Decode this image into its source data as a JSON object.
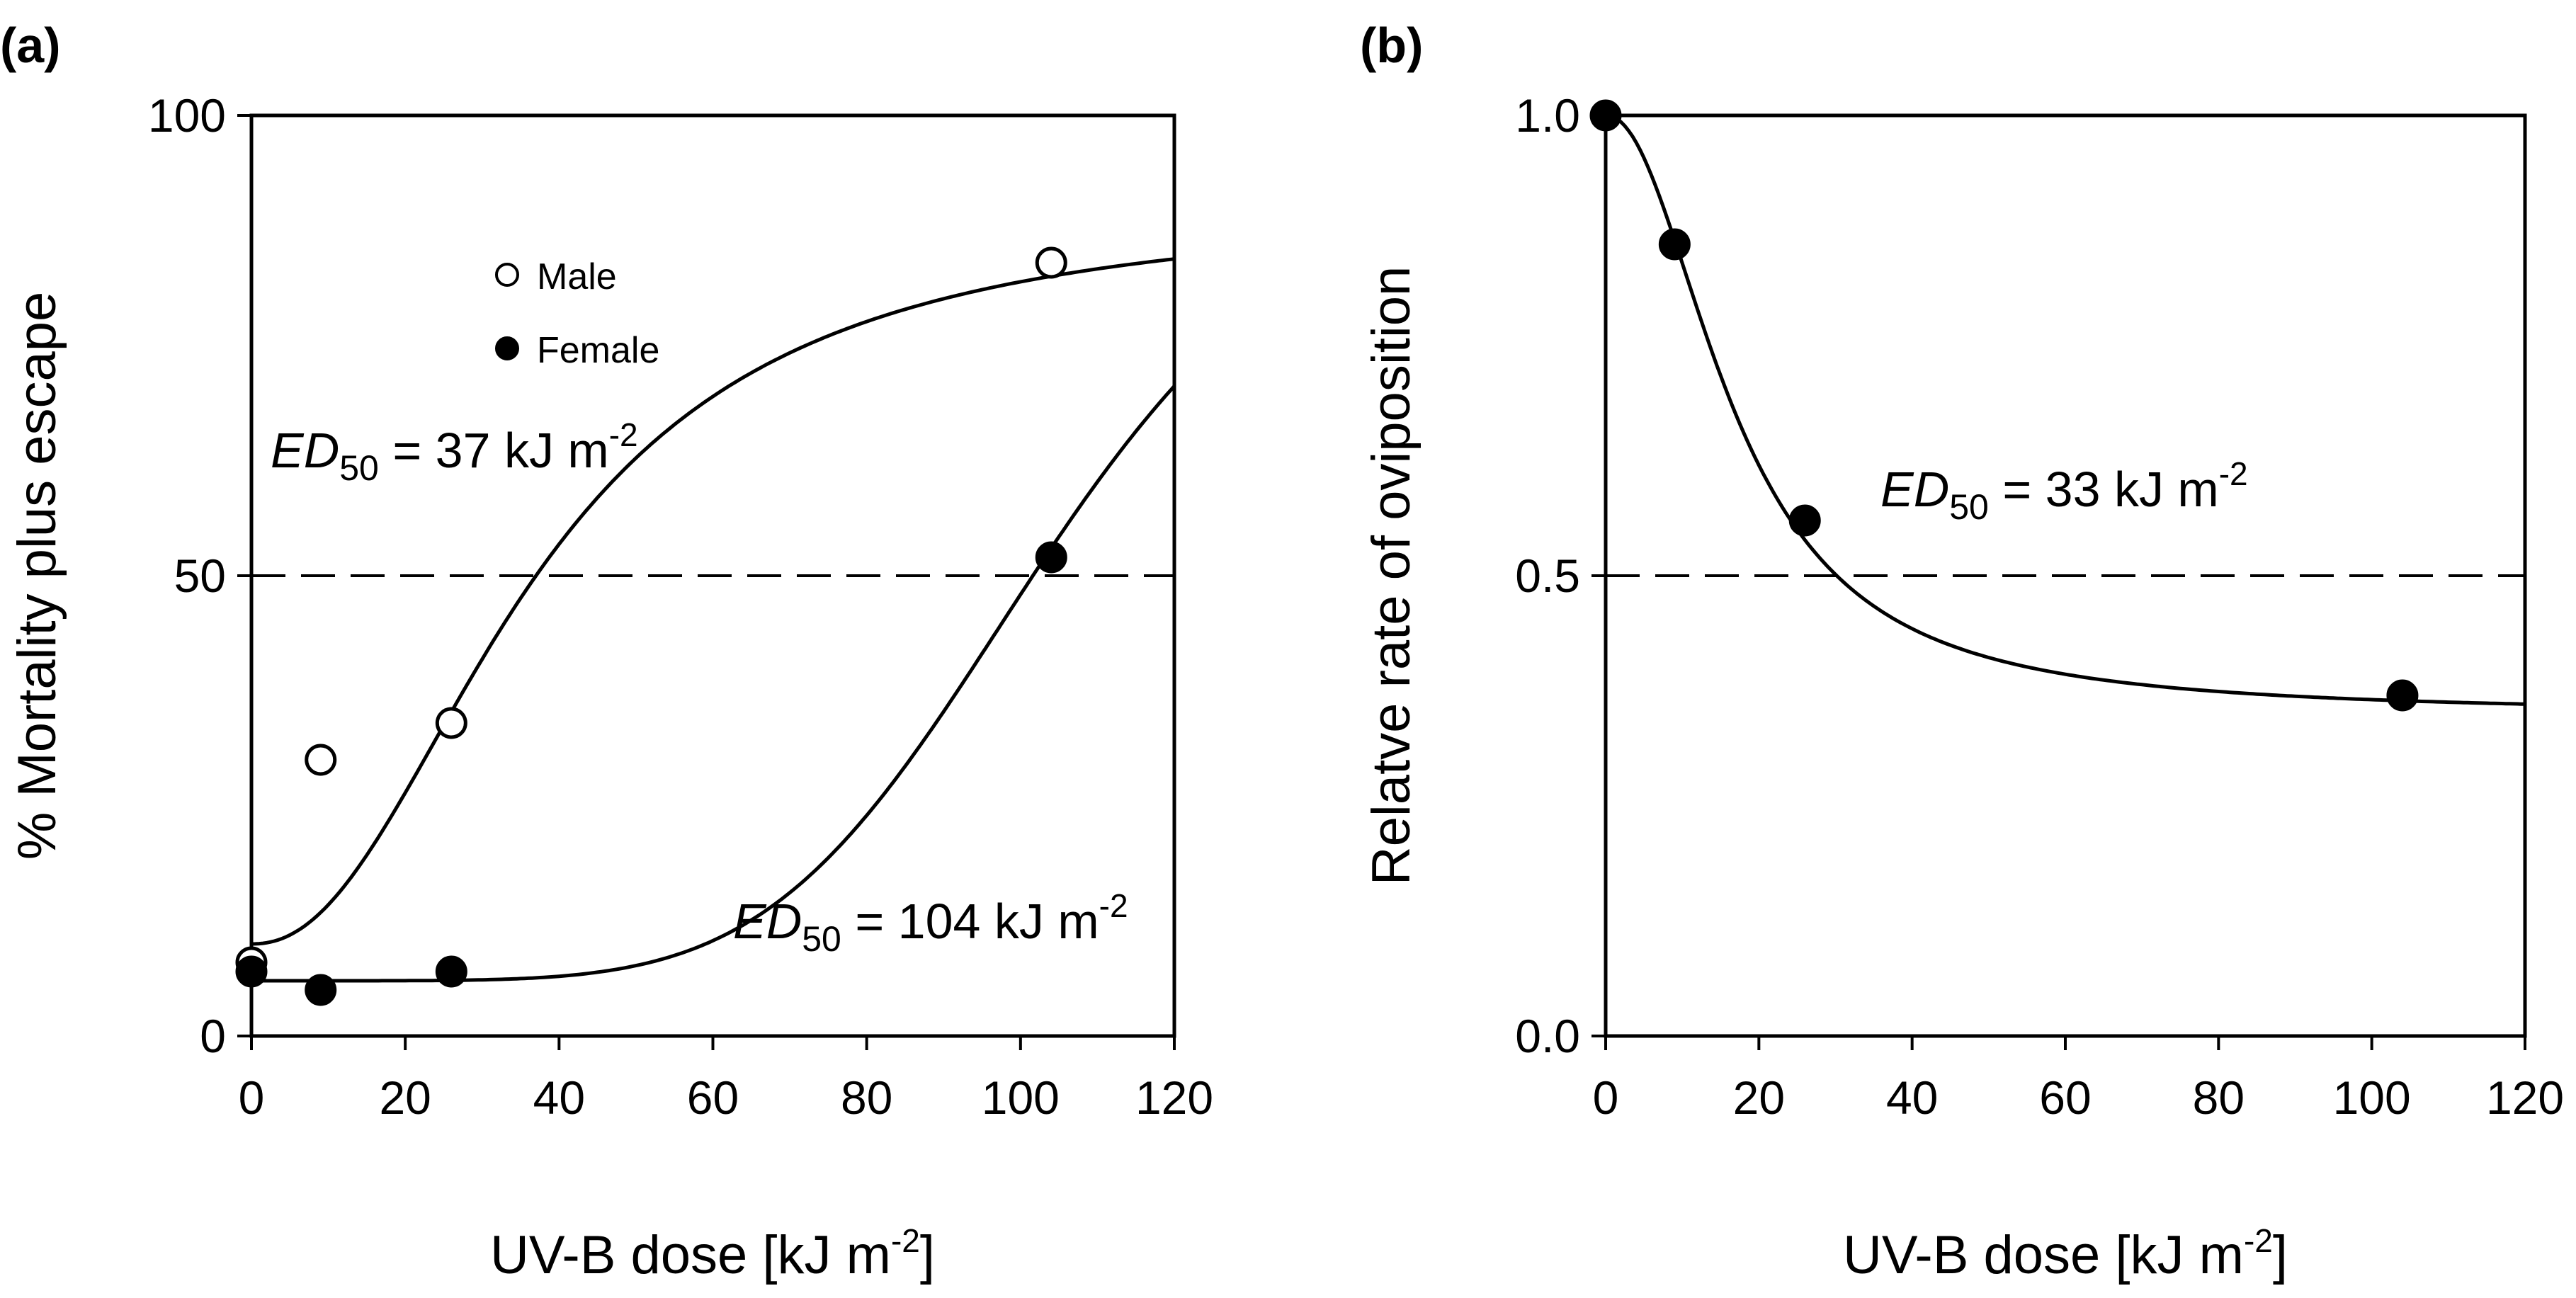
{
  "chart_data": [
    {
      "panel_label": "(a)",
      "type": "scatter",
      "xlabel": {
        "main": "UV-B dose [kJ m",
        "sup": "-2",
        "close": "]"
      },
      "ylabel": "% Mortality plus escape",
      "xlim": [
        0,
        120
      ],
      "ylim": [
        0,
        100
      ],
      "xticks": [
        "0",
        "20",
        "40",
        "60",
        "80",
        "100",
        "120"
      ],
      "yticks": [
        "0",
        "50",
        "100"
      ],
      "reference_line": 50,
      "series": [
        {
          "name": "Male",
          "marker": "open-circle",
          "x": [
            0,
            9,
            26,
            104
          ],
          "y": [
            8,
            30,
            34,
            84
          ],
          "fit": {
            "type": "sigmoid",
            "bottom": 10,
            "top": 90,
            "ed50": 37,
            "slope": 2.2
          },
          "annotation": {
            "italic": "ED",
            "sub": "50",
            "text": " = 37 kJ m",
            "sup": "-2"
          }
        },
        {
          "name": "Female",
          "marker": "filled-circle",
          "x": [
            0,
            9,
            26,
            104
          ],
          "y": [
            7,
            5,
            7,
            52
          ],
          "fit": {
            "type": "sigmoid",
            "bottom": 6,
            "top": 100,
            "ed50": 104,
            "slope": 5.5
          },
          "annotation": {
            "italic": "ED",
            "sub": "50",
            "text": " = 104 kJ m",
            "sup": "-2"
          }
        }
      ]
    },
    {
      "panel_label": "(b)",
      "type": "scatter",
      "xlabel": {
        "main": "UV-B dose [kJ m",
        "sup": "-2",
        "close": "]"
      },
      "ylabel": "Relatve rate of oviposition",
      "xlim": [
        0,
        120
      ],
      "ylim": [
        0,
        1
      ],
      "xticks": [
        "0",
        "20",
        "40",
        "60",
        "80",
        "100",
        "120"
      ],
      "yticks": [
        "0.0",
        "0.5",
        "1.0"
      ],
      "reference_line": 0.5,
      "series": [
        {
          "name": "Oviposition",
          "marker": "filled-circle",
          "x": [
            0,
            9,
            26,
            104
          ],
          "y": [
            1.0,
            0.86,
            0.56,
            0.37
          ],
          "fit": {
            "type": "sigmoid-decay",
            "top": 1.0,
            "bottom": 0.35,
            "ed50": 17,
            "slope": 2.1
          },
          "annotation": {
            "italic": "ED",
            "sub": "50",
            "text": " = 33 kJ m",
            "sup": "-2"
          }
        }
      ]
    }
  ]
}
